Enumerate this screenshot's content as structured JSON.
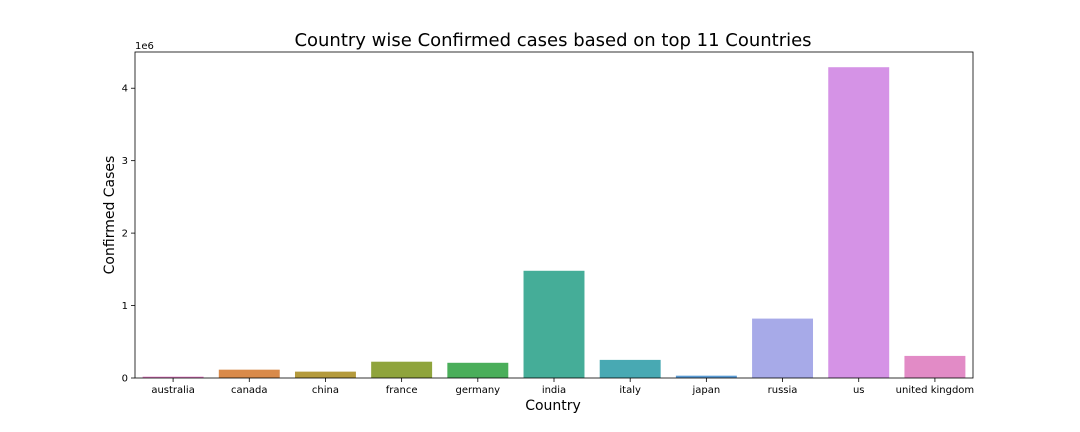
{
  "chart_data": {
    "type": "bar",
    "title": "Country wise Confirmed cases based on top 11 Countries",
    "xlabel": "Country",
    "ylabel": "Confirmed Cases",
    "y_offset_label": "1e6",
    "ylim": [
      0,
      4500000
    ],
    "yticks": [
      0,
      1000000,
      2000000,
      3000000,
      4000000
    ],
    "ytick_labels": [
      "0",
      "1",
      "2",
      "3",
      "4"
    ],
    "grid": false,
    "categories": [
      "australia",
      "canada",
      "china",
      "france",
      "germany",
      "india",
      "italy",
      "japan",
      "russia",
      "us",
      "united kingdom"
    ],
    "values": [
      18000,
      115000,
      88000,
      225000,
      210000,
      1480000,
      250000,
      32000,
      820000,
      4290000,
      305000
    ],
    "colors": [
      "#e377c2",
      "#d98a4a",
      "#b49a3c",
      "#8fa43c",
      "#4aae5a",
      "#45ad98",
      "#48a9b3",
      "#5a9bd4",
      "#a7aae8",
      "#d593e6",
      "#e28bc6"
    ]
  }
}
